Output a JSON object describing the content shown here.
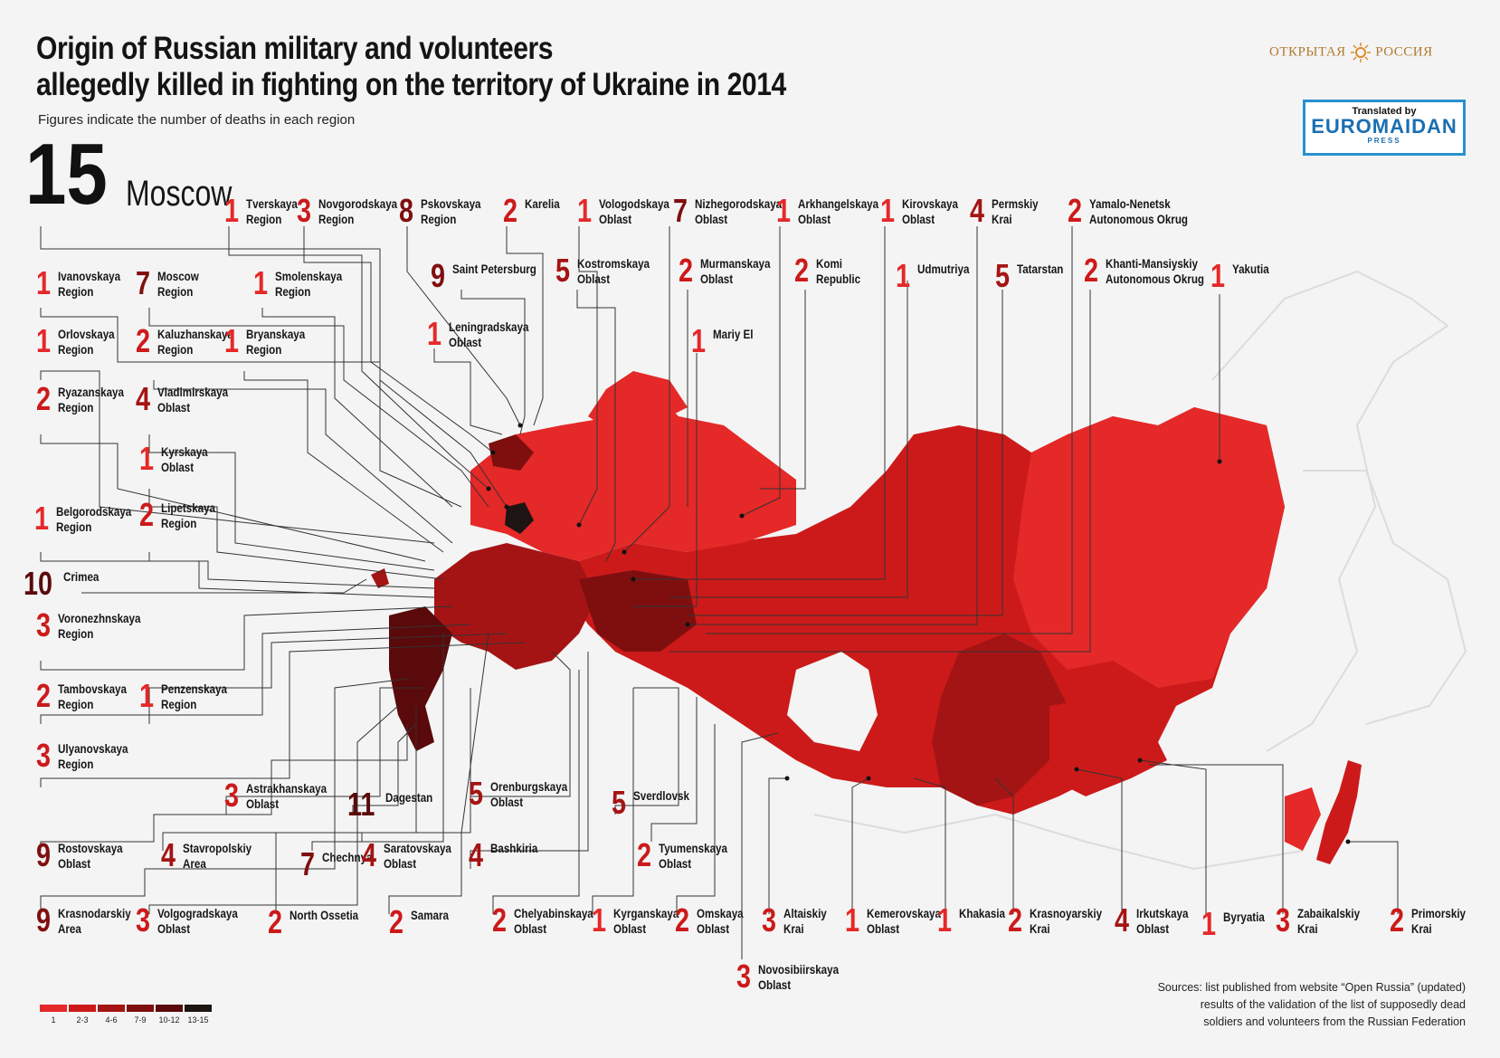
{
  "title_line1": "Origin of Russian military and volunteers",
  "title_line2": "allegedly killed in fighting on the territory of Ukraine in 2014",
  "subtitle": "Figures indicate the number of deaths in each region",
  "brand_left": "ОТКРЫТАЯ",
  "brand_right": "РОССИЯ",
  "badge": {
    "line1": "Translated by",
    "line2": "EUROMAIDAN",
    "line3": "PRESS"
  },
  "colors": {
    "c1": "#e52828",
    "c2": "#cc1a1a",
    "c3": "#a51414",
    "c4": "#7f0f0f",
    "c5": "#5a0a0a",
    "c6": "#1e1414"
  },
  "legend": [
    {
      "label": "1",
      "color": "#e52828"
    },
    {
      "label": "2-3",
      "color": "#cc1a1a"
    },
    {
      "label": "4-6",
      "color": "#a51414"
    },
    {
      "label": "7-9",
      "color": "#7f0f0f"
    },
    {
      "label": "10-12",
      "color": "#5a0a0a"
    },
    {
      "label": "13-15",
      "color": "#1e1414"
    }
  ],
  "sources": {
    "line1": "Sources: list published from website “Open Russia” (updated)",
    "line2": "results of the validation of the list of supposedly dead",
    "line3": "soldiers and volunteers from the Russian Federation"
  },
  "regions": [
    {
      "id": "moscow",
      "count": "15",
      "name": "Moscow"
    },
    {
      "id": "tverskaya",
      "count": "1",
      "name": "Tverskaya\nRegion"
    },
    {
      "id": "novgorodskaya",
      "count": "3",
      "name": "Novgorodskaya\nRegion"
    },
    {
      "id": "pskovskaya",
      "count": "8",
      "name": "Pskovskaya\nRegion"
    },
    {
      "id": "karelia",
      "count": "2",
      "name": "Karelia"
    },
    {
      "id": "vologodskaya",
      "count": "1",
      "name": "Vologodskaya\nOblast"
    },
    {
      "id": "nizhegorodskaya",
      "count": "7",
      "name": "Nizhegorodskaya\nOblast"
    },
    {
      "id": "arkhangelskaya",
      "count": "1",
      "name": "Arkhangelskaya\nOblast"
    },
    {
      "id": "kirovskaya",
      "count": "1",
      "name": "Kirovskaya\nOblast"
    },
    {
      "id": "permskiy",
      "count": "4",
      "name": "Permskiy\nKrai"
    },
    {
      "id": "yamalo",
      "count": "2",
      "name": "Yamalo-Nenetsk\nAutonomous Okrug"
    },
    {
      "id": "ivanovskaya",
      "count": "1",
      "name": "Ivanovskaya\nRegion"
    },
    {
      "id": "moscow-region",
      "count": "7",
      "name": "Moscow\nRegion"
    },
    {
      "id": "smolenskaya",
      "count": "1",
      "name": "Smolenskaya\nRegion"
    },
    {
      "id": "spb",
      "count": "9",
      "name": "Saint Petersburg"
    },
    {
      "id": "kostromskaya",
      "count": "5",
      "name": "Kostromskaya\nOblast"
    },
    {
      "id": "murmanskaya",
      "count": "2",
      "name": "Murmanskaya\nOblast"
    },
    {
      "id": "komi",
      "count": "2",
      "name": "Komi\nRepublic"
    },
    {
      "id": "udmurtiya",
      "count": "1",
      "name": "Udmutriya"
    },
    {
      "id": "tatarstan",
      "count": "5",
      "name": "Tatarstan"
    },
    {
      "id": "khanti",
      "count": "2",
      "name": "Khanti-Mansiyskiy\nAutonomous Okrug"
    },
    {
      "id": "yakutia",
      "count": "1",
      "name": "Yakutia"
    },
    {
      "id": "orlovskaya",
      "count": "1",
      "name": "Orlovskaya\nRegion"
    },
    {
      "id": "kaluzhanskaya",
      "count": "2",
      "name": "Kaluzhanskaya\nRegion"
    },
    {
      "id": "bryanskaya",
      "count": "1",
      "name": "Bryanskaya\nRegion"
    },
    {
      "id": "leningradskaya",
      "count": "1",
      "name": "Leningradskaya\nOblast"
    },
    {
      "id": "mariy",
      "count": "1",
      "name": "Mariy El"
    },
    {
      "id": "ryazanskaya",
      "count": "2",
      "name": "Ryazanskaya\nRegion"
    },
    {
      "id": "vladimirskaya",
      "count": "4",
      "name": "Vladimirskaya\nOblast"
    },
    {
      "id": "kyrskaya",
      "count": "1",
      "name": "Kyrskaya\nOblast"
    },
    {
      "id": "belgorodskaya",
      "count": "1",
      "name": "Belgorodskaya\nRegion"
    },
    {
      "id": "lipetskaya",
      "count": "2",
      "name": "Lipetskaya\nRegion"
    },
    {
      "id": "crimea",
      "count": "10",
      "name": "Crimea"
    },
    {
      "id": "voronezh",
      "count": "3",
      "name": "Voronezhnskaya\nRegion"
    },
    {
      "id": "tambovskaya",
      "count": "2",
      "name": "Tambovskaya\nRegion"
    },
    {
      "id": "penzenskaya",
      "count": "1",
      "name": "Penzenskaya\nRegion"
    },
    {
      "id": "ulyanovskaya",
      "count": "3",
      "name": "Ulyanovskaya\nRegion"
    },
    {
      "id": "astrakhanskaya",
      "count": "3",
      "name": "Astrakhanskaya\nOblast"
    },
    {
      "id": "dagestan",
      "count": "11",
      "name": "Dagestan"
    },
    {
      "id": "orenburgskaya",
      "count": "5",
      "name": "Orenburgskaya\nOblast"
    },
    {
      "id": "sverdlovsk",
      "count": "5",
      "name": "Sverdlovsk"
    },
    {
      "id": "rostovskaya",
      "count": "9",
      "name": "Rostovskaya\nOblast"
    },
    {
      "id": "stavropolskiy",
      "count": "4",
      "name": "Stavropolskiy\nArea"
    },
    {
      "id": "chechnya",
      "count": "7",
      "name": "Chechnya"
    },
    {
      "id": "saratovskaya",
      "count": "4",
      "name": "Saratovskaya\nOblast"
    },
    {
      "id": "bashkiria",
      "count": "4",
      "name": "Bashkiria"
    },
    {
      "id": "tyumenskaya",
      "count": "2",
      "name": "Tyumenskaya\nOblast"
    },
    {
      "id": "krasnodarskiy",
      "count": "9",
      "name": "Krasnodarskiy\nArea"
    },
    {
      "id": "volgogradskaya",
      "count": "3",
      "name": "Volgogradskaya\nOblast"
    },
    {
      "id": "north-ossetia",
      "count": "2",
      "name": "North Ossetia"
    },
    {
      "id": "samara",
      "count": "2",
      "name": "Samara"
    },
    {
      "id": "chelyabinskaya",
      "count": "2",
      "name": "Chelyabinskaya\nOblast"
    },
    {
      "id": "kyrganskaya",
      "count": "1",
      "name": "Kyrganskaya\nOblast"
    },
    {
      "id": "omskaya",
      "count": "2",
      "name": "Omskaya\nOblast"
    },
    {
      "id": "altaiskiy",
      "count": "3",
      "name": "Altaiskiy\nKrai"
    },
    {
      "id": "kemerovskaya",
      "count": "1",
      "name": "Kemerovskaya\nOblast"
    },
    {
      "id": "khakasia",
      "count": "1",
      "name": "Khakasia"
    },
    {
      "id": "krasnoyarskiy",
      "count": "2",
      "name": "Krasnoyarskiy\nKrai"
    },
    {
      "id": "irkutskaya",
      "count": "4",
      "name": "Irkutskaya\nOblast"
    },
    {
      "id": "byryatia",
      "count": "1",
      "name": "Byryatia"
    },
    {
      "id": "zabaikalskiy",
      "count": "3",
      "name": "Zabaikalskiy\nKrai"
    },
    {
      "id": "primorskiy",
      "count": "2",
      "name": "Primorskiy\nKrai"
    },
    {
      "id": "novosibirskaya",
      "count": "3",
      "name": "Novosibiirskaya\nOblast"
    }
  ]
}
